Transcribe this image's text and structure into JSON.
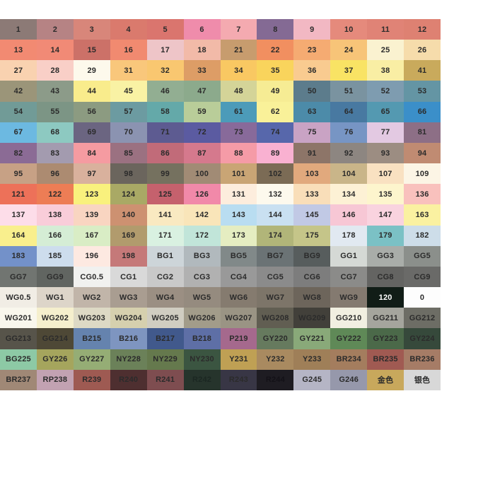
{
  "page": {
    "title": "Marker color reference chart",
    "background": "#ffffff"
  },
  "grid": {
    "columns": 12,
    "row_count": 18,
    "default_text_color": "#2b2b2b",
    "rows": [
      {
        "cells": [
          {
            "label": "1",
            "bg": "#8c7a76"
          },
          {
            "label": "2",
            "bg": "#b68384"
          },
          {
            "label": "3",
            "bg": "#d8867a"
          },
          {
            "label": "4",
            "bg": "#da7a6d"
          },
          {
            "label": "5",
            "bg": "#da756e"
          },
          {
            "label": "6",
            "bg": "#ef8cab"
          },
          {
            "label": "7",
            "bg": "#f4aab0"
          },
          {
            "label": "8",
            "bg": "#846a94"
          },
          {
            "label": "9",
            "bg": "#f2b8c3"
          },
          {
            "label": "10",
            "bg": "#e58a7c"
          },
          {
            "label": "11",
            "bg": "#e08376"
          },
          {
            "label": "12",
            "bg": "#de8172"
          }
        ]
      },
      {
        "cells": [
          {
            "label": "13",
            "bg": "#f28a72"
          },
          {
            "label": "14",
            "bg": "#f18a76"
          },
          {
            "label": "15",
            "bg": "#cc7168"
          },
          {
            "label": "16",
            "bg": "#f18a70"
          },
          {
            "label": "17",
            "bg": "#eec5c8"
          },
          {
            "label": "18",
            "bg": "#f2baa8"
          },
          {
            "label": "21",
            "bg": "#c79c6e"
          },
          {
            "label": "22",
            "bg": "#f18f60"
          },
          {
            "label": "23",
            "bg": "#f5ab72"
          },
          {
            "label": "24",
            "bg": "#f7c478"
          },
          {
            "label": "25",
            "bg": "#faf2d0"
          },
          {
            "label": "26",
            "bg": "#f6dcab"
          }
        ]
      },
      {
        "cells": [
          {
            "label": "27",
            "bg": "#f9d2b0"
          },
          {
            "label": "28",
            "bg": "#f9cfc7"
          },
          {
            "label": "29",
            "bg": "#fdf9ec"
          },
          {
            "label": "31",
            "bg": "#f9c77b"
          },
          {
            "label": "32",
            "bg": "#f9c770"
          },
          {
            "label": "33",
            "bg": "#dd9d66"
          },
          {
            "label": "34",
            "bg": "#f9c862"
          },
          {
            "label": "35",
            "bg": "#f9d45c"
          },
          {
            "label": "36",
            "bg": "#f9cb90"
          },
          {
            "label": "37",
            "bg": "#f9e364"
          },
          {
            "label": "38",
            "bg": "#f9eea4"
          },
          {
            "label": "41",
            "bg": "#c9aa5c"
          }
        ]
      },
      {
        "cells": [
          {
            "label": "42",
            "bg": "#9b9579"
          },
          {
            "label": "43",
            "bg": "#8c9b89"
          },
          {
            "label": "44",
            "bg": "#f9ec8c"
          },
          {
            "label": "45",
            "bg": "#f9f2a4"
          },
          {
            "label": "46",
            "bg": "#92ae92"
          },
          {
            "label": "47",
            "bg": "#8caa8c"
          },
          {
            "label": "48",
            "bg": "#d4d498"
          },
          {
            "label": "49",
            "bg": "#f6ec94"
          },
          {
            "label": "50",
            "bg": "#5c7c8c"
          },
          {
            "label": "51",
            "bg": "#7a93a0"
          },
          {
            "label": "52",
            "bg": "#7e9cb0"
          },
          {
            "label": "53",
            "bg": "#6495a4"
          }
        ]
      },
      {
        "cells": [
          {
            "label": "54",
            "bg": "#719b97"
          },
          {
            "label": "55",
            "bg": "#7c9585"
          },
          {
            "label": "56",
            "bg": "#8c9b81"
          },
          {
            "label": "57",
            "bg": "#6c9ba1"
          },
          {
            "label": "58",
            "bg": "#64a9a9"
          },
          {
            "label": "59",
            "bg": "#b9cd99"
          },
          {
            "label": "61",
            "bg": "#4c9bb9"
          },
          {
            "label": "62",
            "bg": "#f9f199"
          },
          {
            "label": "63",
            "bg": "#4c8ba9"
          },
          {
            "label": "64",
            "bg": "#4879a1"
          },
          {
            "label": "65",
            "bg": "#5499b1"
          },
          {
            "label": "66",
            "bg": "#3b8fc9"
          }
        ]
      },
      {
        "cells": [
          {
            "label": "67",
            "bg": "#6cb9e1"
          },
          {
            "label": "68",
            "bg": "#8dc9c1"
          },
          {
            "label": "69",
            "bg": "#6b6581"
          },
          {
            "label": "70",
            "bg": "#8b93b1"
          },
          {
            "label": "71",
            "bg": "#5d5b91"
          },
          {
            "label": "72",
            "bg": "#5b5ba1"
          },
          {
            "label": "73",
            "bg": "#886a9a"
          },
          {
            "label": "74",
            "bg": "#5767ab"
          },
          {
            "label": "75",
            "bg": "#c9a3c4"
          },
          {
            "label": "76",
            "bg": "#7795c4"
          },
          {
            "label": "77",
            "bg": "#e3c9e2"
          },
          {
            "label": "81",
            "bg": "#8d6f86"
          }
        ]
      },
      {
        "cells": [
          {
            "label": "82",
            "bg": "#8b6b95"
          },
          {
            "label": "83",
            "bg": "#a39baf"
          },
          {
            "label": "84",
            "bg": "#f59ba1"
          },
          {
            "label": "85",
            "bg": "#9b7181"
          },
          {
            "label": "86",
            "bg": "#c16b79"
          },
          {
            "label": "87",
            "bg": "#d5798d"
          },
          {
            "label": "88",
            "bg": "#f59ba7"
          },
          {
            "label": "89",
            "bg": "#f9b1d1"
          },
          {
            "label": "91",
            "bg": "#8d7568"
          },
          {
            "label": "92",
            "bg": "#8d8681"
          },
          {
            "label": "93",
            "bg": "#9c8d82"
          },
          {
            "label": "94",
            "bg": "#c08b72"
          }
        ]
      },
      {
        "cells": [
          {
            "label": "95",
            "bg": "#c7a185"
          },
          {
            "label": "96",
            "bg": "#ac8b71"
          },
          {
            "label": "97",
            "bg": "#d9b19d"
          },
          {
            "label": "98",
            "bg": "#6b655d"
          },
          {
            "label": "99",
            "bg": "#75715f"
          },
          {
            "label": "100",
            "bg": "#a18b75"
          },
          {
            "label": "101",
            "bg": "#c9a575"
          },
          {
            "label": "102",
            "bg": "#7b6b55"
          },
          {
            "label": "103",
            "bg": "#e1a97d"
          },
          {
            "label": "104",
            "bg": "#c9b589"
          },
          {
            "label": "107",
            "bg": "#f9e1c1"
          },
          {
            "label": "109",
            "bg": "#fcf5e5"
          }
        ]
      },
      {
        "cells": [
          {
            "label": "121",
            "bg": "#ed7159"
          },
          {
            "label": "122",
            "bg": "#ed7d55"
          },
          {
            "label": "123",
            "bg": "#f9f17d"
          },
          {
            "label": "124",
            "bg": "#a9a965"
          },
          {
            "label": "125",
            "bg": "#c5616d"
          },
          {
            "label": "126",
            "bg": "#f189a9"
          },
          {
            "label": "131",
            "bg": "#fdeddd"
          },
          {
            "label": "132",
            "bg": "#fdf9ed"
          },
          {
            "label": "133",
            "bg": "#f9deb9"
          },
          {
            "label": "134",
            "bg": "#fdf1d5"
          },
          {
            "label": "135",
            "bg": "#fdf5cd"
          },
          {
            "label": "136",
            "bg": "#f9c1bd"
          }
        ]
      },
      {
        "cells": [
          {
            "label": "137",
            "bg": "#fddde9"
          },
          {
            "label": "138",
            "bg": "#f9cdd9"
          },
          {
            "label": "139",
            "bg": "#f9d5c1"
          },
          {
            "label": "140",
            "bg": "#cd9171"
          },
          {
            "label": "141",
            "bg": "#f9e9c1"
          },
          {
            "label": "142",
            "bg": "#f9e5b9"
          },
          {
            "label": "143",
            "bg": "#b9ddf1"
          },
          {
            "label": "144",
            "bg": "#c9e0f1"
          },
          {
            "label": "145",
            "bg": "#c1c9e5"
          },
          {
            "label": "146",
            "bg": "#f7c7d5"
          },
          {
            "label": "147",
            "bg": "#f9d3df"
          },
          {
            "label": "163",
            "bg": "#faf1a1"
          }
        ]
      },
      {
        "cells": [
          {
            "label": "164",
            "bg": "#f9ef8d"
          },
          {
            "label": "166",
            "bg": "#d5edd5"
          },
          {
            "label": "167",
            "bg": "#d9edc5"
          },
          {
            "label": "169",
            "bg": "#b19b6d"
          },
          {
            "label": "171",
            "bg": "#d9f1e1"
          },
          {
            "label": "172",
            "bg": "#c1e5d9"
          },
          {
            "label": "173",
            "bg": "#e5edc1"
          },
          {
            "label": "174",
            "bg": "#b1b579"
          },
          {
            "label": "175",
            "bg": "#c5c589"
          },
          {
            "label": "178",
            "bg": "#e1e9f1"
          },
          {
            "label": "179",
            "bg": "#7bc1c5"
          },
          {
            "label": "182",
            "bg": "#cddde9"
          }
        ]
      },
      {
        "cells": [
          {
            "label": "183",
            "bg": "#7391c9"
          },
          {
            "label": "185",
            "bg": "#cddded"
          },
          {
            "label": "196",
            "bg": "#fde9e1"
          },
          {
            "label": "198",
            "bg": "#c57979"
          },
          {
            "label": "BG1",
            "bg": "#cdd5d9"
          },
          {
            "label": "BG3",
            "bg": "#b1b9bd"
          },
          {
            "label": "BG5",
            "bg": "#818989"
          },
          {
            "label": "BG7",
            "bg": "#6b7375"
          },
          {
            "label": "BG9",
            "bg": "#575d5d"
          },
          {
            "label": "GG1",
            "bg": "#d5d9d5"
          },
          {
            "label": "GG3",
            "bg": "#a9ada9"
          },
          {
            "label": "GG5",
            "bg": "#8b8f8b"
          }
        ]
      },
      {
        "cells": [
          {
            "label": "GG7",
            "bg": "#717571"
          },
          {
            "label": "GG9",
            "bg": "#616561"
          },
          {
            "label": "CG0.5",
            "bg": "#f1f1ef"
          },
          {
            "label": "CG1",
            "bg": "#d9d9d9"
          },
          {
            "label": "CG2",
            "bg": "#c9c9c9"
          },
          {
            "label": "CG3",
            "bg": "#b1b1b1"
          },
          {
            "label": "CG4",
            "bg": "#999999"
          },
          {
            "label": "CG5",
            "bg": "#8b8b8b"
          },
          {
            "label": "CG6",
            "bg": "#7d7d7d"
          },
          {
            "label": "CG7",
            "bg": "#8b8b89"
          },
          {
            "label": "CG8",
            "bg": "#646462"
          },
          {
            "label": "CG9",
            "bg": "#6a6a68"
          }
        ]
      },
      {
        "cells": [
          {
            "label": "WG0.5",
            "bg": "#f1ede5"
          },
          {
            "label": "WG1",
            "bg": "#ddd5c9"
          },
          {
            "label": "WG2",
            "bg": "#c1b5a9"
          },
          {
            "label": "WG3",
            "bg": "#a99d91"
          },
          {
            "label": "WG4",
            "bg": "#9b8f83"
          },
          {
            "label": "WG5",
            "bg": "#958b7f"
          },
          {
            "label": "WG6",
            "bg": "#857b6f"
          },
          {
            "label": "WG7",
            "bg": "#7d7569"
          },
          {
            "label": "WG8",
            "bg": "#6d655b"
          },
          {
            "label": "WG9",
            "bg": "#847a70"
          },
          {
            "label": "120",
            "bg": "#111d17",
            "fg": "#ffffff"
          },
          {
            "label": "0",
            "bg": "#fdfdfd"
          }
        ]
      },
      {
        "cells": [
          {
            "label": "WG201",
            "bg": "#f9f7ed"
          },
          {
            "label": "WG202",
            "bg": "#f5efcd"
          },
          {
            "label": "WG203",
            "bg": "#ddd9c5"
          },
          {
            "label": "WG204",
            "bg": "#d6d0ae"
          },
          {
            "label": "WG205",
            "bg": "#d0cdc1"
          },
          {
            "label": "WG206",
            "bg": "#a29c8a"
          },
          {
            "label": "WG207",
            "bg": "#9a9484"
          },
          {
            "label": "WG208",
            "bg": "#615e52"
          },
          {
            "label": "WG209",
            "bg": "#42403a"
          },
          {
            "label": "GG210",
            "bg": "#f1efe1"
          },
          {
            "label": "GG211",
            "bg": "#a5a59d"
          },
          {
            "label": "GG212",
            "bg": "#6d6d65"
          }
        ]
      },
      {
        "cells": [
          {
            "label": "GG213",
            "bg": "#57544a"
          },
          {
            "label": "GG214",
            "bg": "#4e4836"
          },
          {
            "label": "B215",
            "bg": "#6583ae"
          },
          {
            "label": "B216",
            "bg": "#7e95c0"
          },
          {
            "label": "B217",
            "bg": "#41598c"
          },
          {
            "label": "B218",
            "bg": "#5e6fa6"
          },
          {
            "label": "P219",
            "bg": "#a5698d"
          },
          {
            "label": "GY220",
            "bg": "#667a5e"
          },
          {
            "label": "GY221",
            "bg": "#89a979"
          },
          {
            "label": "GY222",
            "bg": "#5f8957"
          },
          {
            "label": "GY223",
            "bg": "#4b6949"
          },
          {
            "label": "GY224",
            "bg": "#36493b"
          }
        ]
      },
      {
        "cells": [
          {
            "label": "BG225",
            "bg": "#8dc9a5"
          },
          {
            "label": "GY226",
            "bg": "#a5a55d"
          },
          {
            "label": "GY227",
            "bg": "#95ad75"
          },
          {
            "label": "NY228",
            "bg": "#6b8159"
          },
          {
            "label": "NY229",
            "bg": "#65794d"
          },
          {
            "label": "NY230",
            "bg": "#3b5541"
          },
          {
            "label": "Y231",
            "bg": "#bfa054"
          },
          {
            "label": "Y232",
            "bg": "#a98a60"
          },
          {
            "label": "Y233",
            "bg": "#9f7f58"
          },
          {
            "label": "BR234",
            "bg": "#a47d5e"
          },
          {
            "label": "BR235",
            "bg": "#a05a52"
          },
          {
            "label": "BR236",
            "bg": "#a67c66"
          }
        ]
      },
      {
        "cells": [
          {
            "label": "BR237",
            "bg": "#a08876"
          },
          {
            "label": "RP238",
            "bg": "#c2a2b2"
          },
          {
            "label": "R239",
            "bg": "#9e5a52"
          },
          {
            "label": "R240",
            "bg": "#4e2f30"
          },
          {
            "label": "R241",
            "bg": "#7e4d50"
          },
          {
            "label": "R242",
            "bg": "#26342c",
            "fg": "#1b2722"
          },
          {
            "label": "R243",
            "bg": "#383645"
          },
          {
            "label": "R244",
            "bg": "#1e1c22",
            "fg": "#131117"
          },
          {
            "label": "G245",
            "bg": "#b5b5c5"
          },
          {
            "label": "G246",
            "bg": "#9698ab"
          },
          {
            "label": "金色",
            "bg": "#c8a85c"
          },
          {
            "label": "银色",
            "bg": "#d8d8d8"
          }
        ]
      }
    ]
  }
}
